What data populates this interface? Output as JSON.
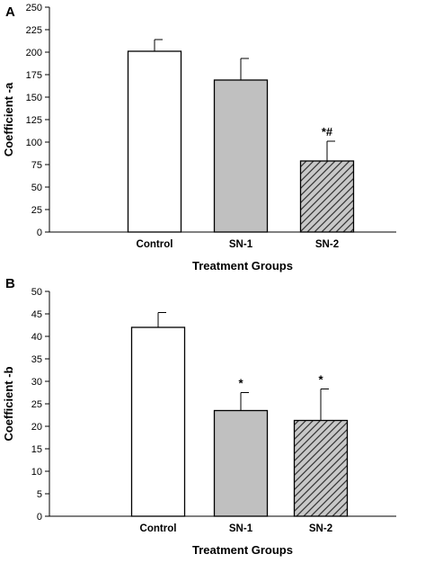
{
  "chart_data": [
    {
      "type": "bar",
      "panel_label": "A",
      "categories": [
        "Control",
        "SN-1",
        "SN-2"
      ],
      "values": [
        201,
        169,
        79
      ],
      "errors": [
        13,
        24,
        22
      ],
      "annotations": [
        "",
        "",
        "*#"
      ],
      "fills": [
        "#ffffff",
        "#c0c0c0",
        "hatch"
      ],
      "xlabel": "Treatment Groups",
      "ylabel": "Coefficient -a",
      "ylim": [
        0,
        250
      ],
      "yticks": [
        0,
        25,
        50,
        75,
        100,
        125,
        150,
        175,
        200,
        225,
        250
      ]
    },
    {
      "type": "bar",
      "panel_label": "B",
      "categories": [
        "Control",
        "SN-1",
        "SN-2"
      ],
      "values": [
        42,
        23.5,
        21.3
      ],
      "errors": [
        3.3,
        4,
        7
      ],
      "annotations": [
        "",
        "*",
        "*"
      ],
      "fills": [
        "#ffffff",
        "#c0c0c0",
        "hatch"
      ],
      "xlabel": "Treatment Groups",
      "ylabel": "Coefficient -b",
      "ylim": [
        0,
        50
      ],
      "yticks": [
        0,
        5,
        10,
        15,
        20,
        25,
        30,
        35,
        40,
        45,
        50
      ]
    }
  ]
}
